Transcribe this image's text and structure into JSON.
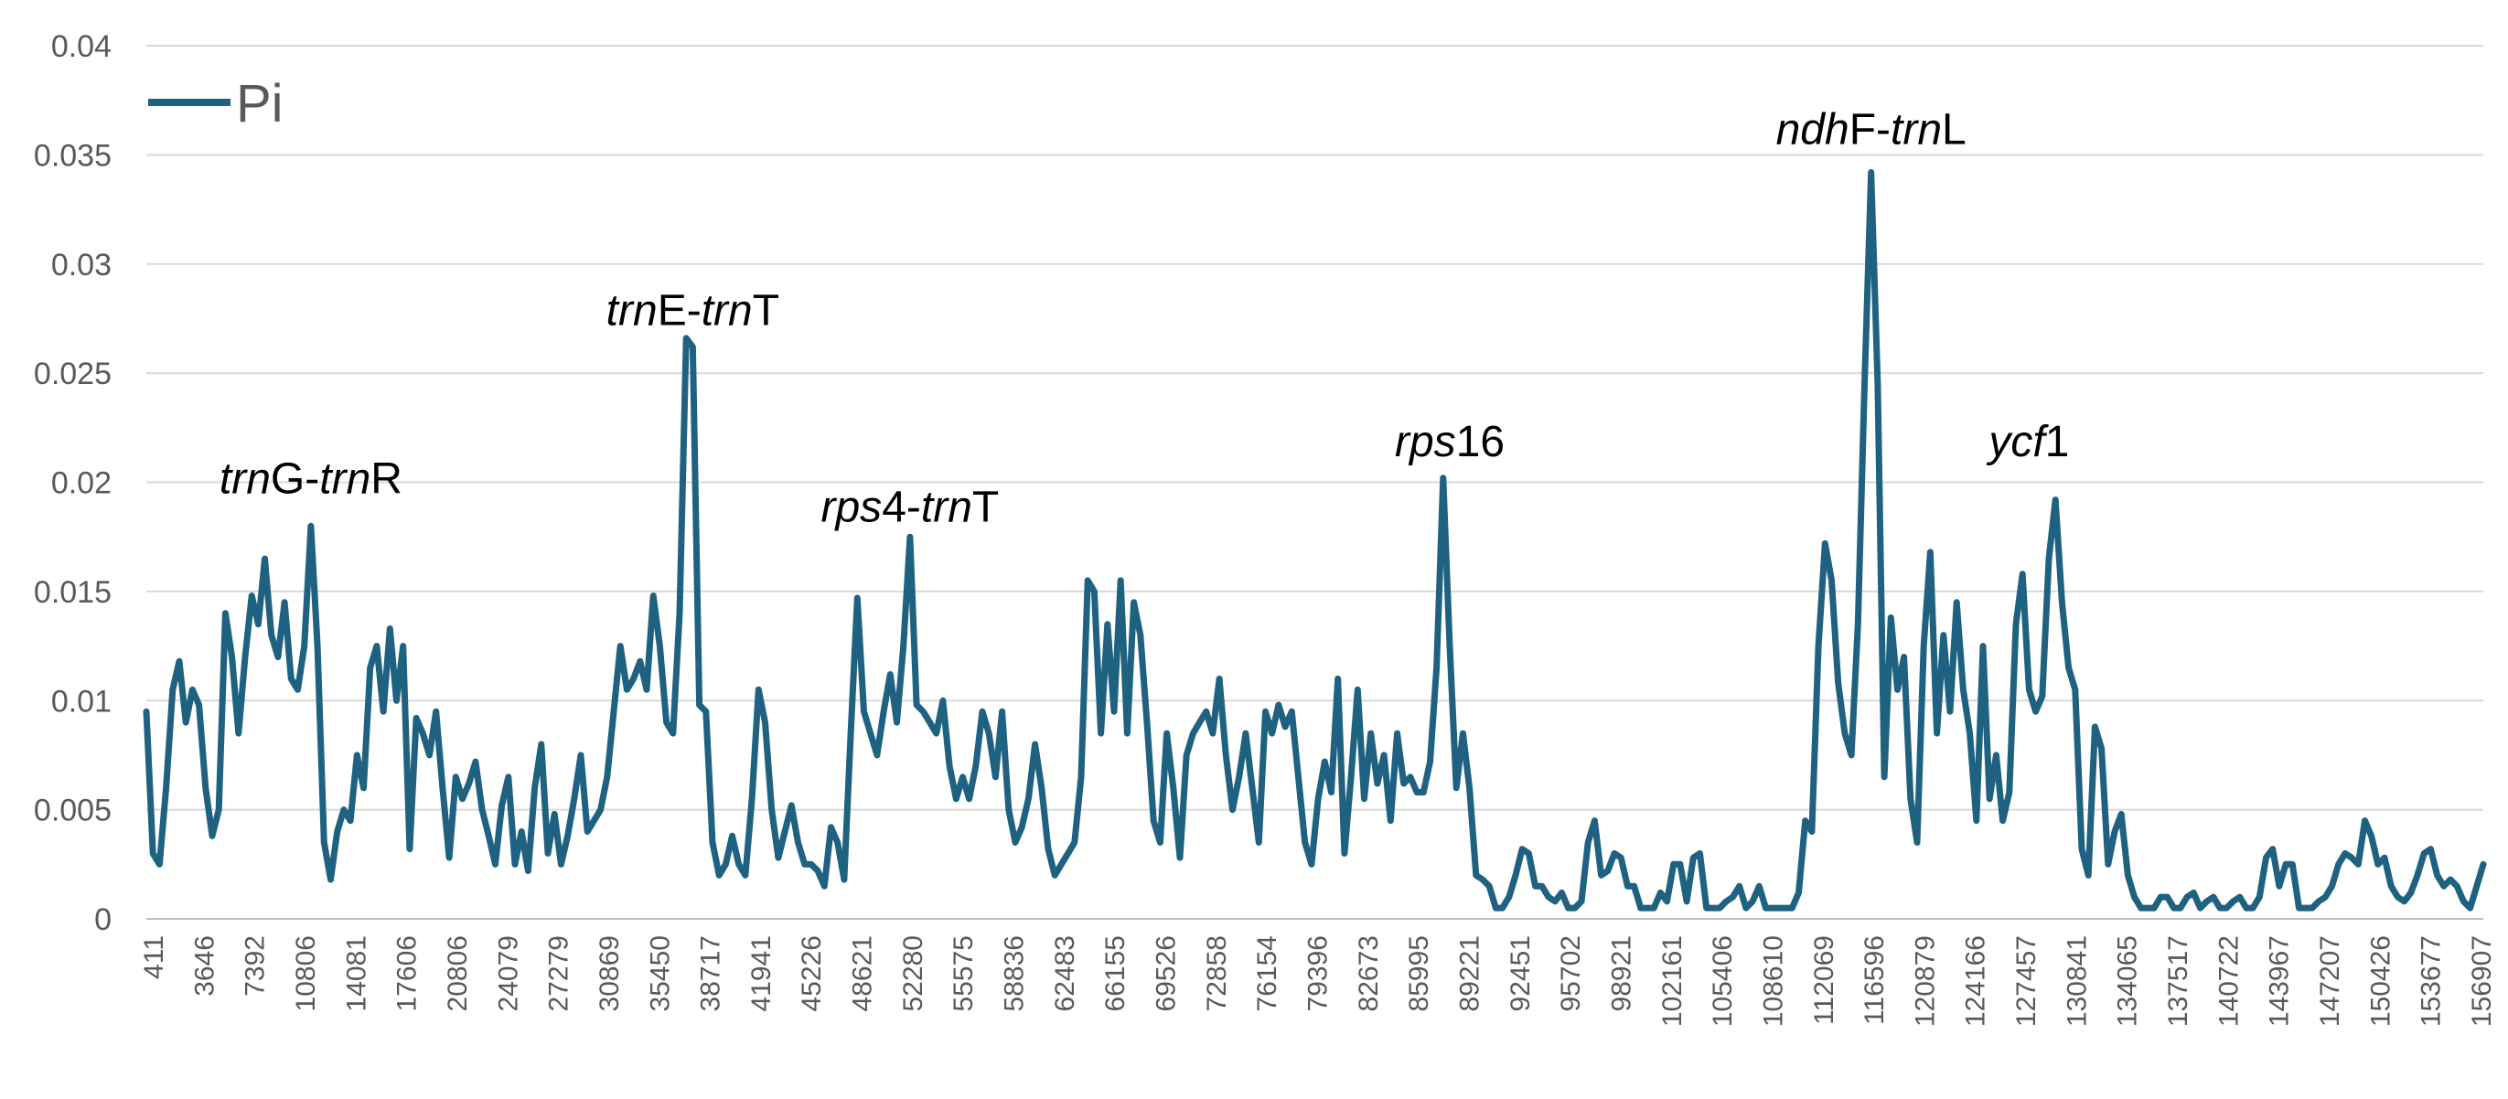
{
  "chart_data": {
    "type": "line",
    "title": "",
    "xlabel": "",
    "ylabel": "",
    "ylim": [
      0,
      0.04
    ],
    "yticks": [
      "0",
      "0.005",
      "0.01",
      "0.015",
      "0.02",
      "0.025",
      "0.03",
      "0.035",
      "0.04"
    ],
    "grid": true,
    "legend": {
      "position": "top-left",
      "entries": [
        "Pi"
      ]
    },
    "x_tick_labels": [
      "411",
      "3646",
      "7392",
      "10806",
      "14081",
      "17606",
      "20806",
      "24079",
      "27279",
      "30869",
      "35450",
      "38717",
      "41941",
      "45226",
      "48621",
      "52280",
      "55575",
      "58836",
      "62483",
      "66155",
      "69526",
      "72858",
      "76154",
      "79396",
      "82673",
      "85995",
      "89221",
      "92451",
      "95702",
      "98921",
      "102161",
      "105406",
      "108610",
      "112069",
      "116596",
      "120879",
      "124166",
      "127457",
      "130841",
      "134065",
      "137517",
      "140722",
      "143967",
      "147207",
      "150426",
      "153677",
      "156907"
    ],
    "series": [
      {
        "name": "Pi",
        "color": "#1f6180",
        "values": [
          0.0095,
          0.003,
          0.0025,
          0.006,
          0.0105,
          0.0118,
          0.009,
          0.0105,
          0.0098,
          0.006,
          0.0038,
          0.005,
          0.014,
          0.012,
          0.0085,
          0.012,
          0.0148,
          0.0135,
          0.0165,
          0.013,
          0.012,
          0.0145,
          0.011,
          0.0105,
          0.0125,
          0.018,
          0.0125,
          0.0035,
          0.0018,
          0.004,
          0.005,
          0.0045,
          0.0075,
          0.006,
          0.0115,
          0.0125,
          0.0095,
          0.0133,
          0.01,
          0.0125,
          0.0032,
          0.0092,
          0.0085,
          0.0075,
          0.0095,
          0.006,
          0.0028,
          0.0065,
          0.0055,
          0.0062,
          0.0072,
          0.005,
          0.0038,
          0.0025,
          0.0052,
          0.0065,
          0.0025,
          0.004,
          0.0022,
          0.006,
          0.008,
          0.003,
          0.0048,
          0.0025,
          0.0038,
          0.0055,
          0.0075,
          0.004,
          0.0045,
          0.005,
          0.0065,
          0.0095,
          0.0125,
          0.0105,
          0.011,
          0.0118,
          0.0105,
          0.0148,
          0.0125,
          0.009,
          0.0085,
          0.014,
          0.0266,
          0.0262,
          0.0098,
          0.0095,
          0.0035,
          0.002,
          0.0025,
          0.0038,
          0.0025,
          0.002,
          0.0055,
          0.0105,
          0.009,
          0.005,
          0.0028,
          0.004,
          0.0052,
          0.0035,
          0.0025,
          0.0025,
          0.0022,
          0.0015,
          0.0042,
          0.0035,
          0.0018,
          0.0085,
          0.0147,
          0.0095,
          0.0085,
          0.0075,
          0.0095,
          0.0112,
          0.009,
          0.0125,
          0.0175,
          0.0098,
          0.0095,
          0.009,
          0.0085,
          0.01,
          0.007,
          0.0055,
          0.0065,
          0.0055,
          0.007,
          0.0095,
          0.0085,
          0.0065,
          0.0095,
          0.005,
          0.0035,
          0.0042,
          0.0055,
          0.008,
          0.006,
          0.0032,
          0.002,
          0.0025,
          0.003,
          0.0035,
          0.0065,
          0.0155,
          0.015,
          0.0085,
          0.0135,
          0.0095,
          0.0155,
          0.0085,
          0.0145,
          0.013,
          0.009,
          0.0045,
          0.0035,
          0.0085,
          0.006,
          0.0028,
          0.0075,
          0.0085,
          0.009,
          0.0095,
          0.0085,
          0.011,
          0.0075,
          0.005,
          0.0065,
          0.0085,
          0.006,
          0.0035,
          0.0095,
          0.0085,
          0.0098,
          0.0088,
          0.0095,
          0.0065,
          0.0035,
          0.0025,
          0.0055,
          0.0072,
          0.0058,
          0.011,
          0.003,
          0.0065,
          0.0105,
          0.0055,
          0.0085,
          0.0062,
          0.0075,
          0.0045,
          0.0085,
          0.0062,
          0.0065,
          0.0058,
          0.0058,
          0.0072,
          0.0115,
          0.0202,
          0.0125,
          0.006,
          0.0085,
          0.006,
          0.002,
          0.0018,
          0.0015,
          0.0005,
          0.0005,
          0.001,
          0.002,
          0.0032,
          0.003,
          0.0015,
          0.0015,
          0.001,
          0.0008,
          0.0012,
          0.0005,
          0.0005,
          0.0008,
          0.0035,
          0.0045,
          0.002,
          0.0022,
          0.003,
          0.0028,
          0.0015,
          0.0015,
          0.0005,
          0.0005,
          0.0005,
          0.0012,
          0.0008,
          0.0025,
          0.0025,
          0.0008,
          0.0028,
          0.003,
          0.0005,
          0.0005,
          0.0005,
          0.0008,
          0.001,
          0.0015,
          0.0005,
          0.0008,
          0.0015,
          0.0005,
          0.0005,
          0.0005,
          0.0005,
          0.0005,
          0.0012,
          0.0045,
          0.004,
          0.0125,
          0.0172,
          0.0155,
          0.0108,
          0.0085,
          0.0075,
          0.0135,
          0.0245,
          0.0342,
          0.0245,
          0.0065,
          0.0138,
          0.0105,
          0.012,
          0.0055,
          0.0035,
          0.0125,
          0.0168,
          0.0085,
          0.013,
          0.0095,
          0.0145,
          0.0105,
          0.0085,
          0.0045,
          0.0125,
          0.0055,
          0.0075,
          0.0045,
          0.0058,
          0.0135,
          0.0158,
          0.0105,
          0.0095,
          0.0102,
          0.0165,
          0.0192,
          0.0145,
          0.0115,
          0.0105,
          0.0032,
          0.002,
          0.0088,
          0.0078,
          0.0025,
          0.004,
          0.0048,
          0.002,
          0.001,
          0.0005,
          0.0005,
          0.0005,
          0.001,
          0.001,
          0.0005,
          0.0005,
          0.001,
          0.0012,
          0.0005,
          0.0008,
          0.001,
          0.0005,
          0.0005,
          0.0008,
          0.001,
          0.0005,
          0.0005,
          0.001,
          0.0028,
          0.0032,
          0.0015,
          0.0025,
          0.0025,
          0.0005,
          0.0005,
          0.0005,
          0.0008,
          0.001,
          0.0015,
          0.0025,
          0.003,
          0.0028,
          0.0025,
          0.0045,
          0.0038,
          0.0025,
          0.0028,
          0.0015,
          0.001,
          0.0008,
          0.0012,
          0.002,
          0.003,
          0.0032,
          0.002,
          0.0015,
          0.0018,
          0.0015,
          0.0008,
          0.0005,
          0.0015,
          0.0025
        ]
      }
    ],
    "annotations": [
      {
        "parts": [
          {
            "text": "trn",
            "italic": true
          },
          {
            "text": "G-",
            "italic": false
          },
          {
            "text": "trn",
            "italic": true
          },
          {
            "text": "R",
            "italic": false
          }
        ],
        "index": 25,
        "value": 0.0195
      },
      {
        "parts": [
          {
            "text": "trn",
            "italic": true
          },
          {
            "text": "E-",
            "italic": false
          },
          {
            "text": "trn",
            "italic": true
          },
          {
            "text": "T",
            "italic": false
          }
        ],
        "index": 83,
        "value": 0.0272
      },
      {
        "parts": [
          {
            "text": "rps",
            "italic": true
          },
          {
            "text": "4-",
            "italic": false
          },
          {
            "text": "trn",
            "italic": true
          },
          {
            "text": "T",
            "italic": false
          }
        ],
        "index": 116,
        "value": 0.0182
      },
      {
        "parts": [
          {
            "text": "rps",
            "italic": true
          },
          {
            "text": "16",
            "italic": false
          }
        ],
        "index": 198,
        "value": 0.0212
      },
      {
        "parts": [
          {
            "text": "ndh",
            "italic": true
          },
          {
            "text": "F-",
            "italic": false
          },
          {
            "text": "trn",
            "italic": true
          },
          {
            "text": "L",
            "italic": false
          }
        ],
        "index": 262,
        "value": 0.0355
      },
      {
        "parts": [
          {
            "text": "ycf",
            "italic": true
          },
          {
            "text": "1",
            "italic": false
          }
        ],
        "index": 286,
        "value": 0.0212
      }
    ]
  }
}
